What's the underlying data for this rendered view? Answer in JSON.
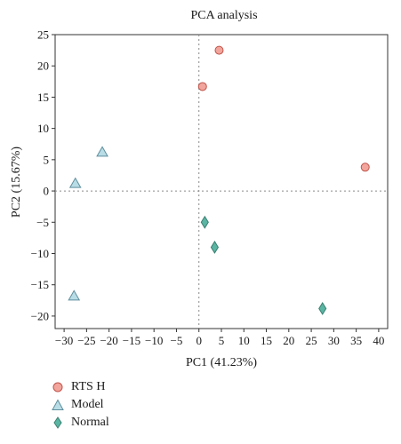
{
  "chart_data": {
    "type": "scatter",
    "title": "PCA analysis",
    "xlabel": "PC1 (41.23%)",
    "ylabel": "PC2 (15.67%)",
    "xlim": [
      -32,
      42
    ],
    "ylim": [
      -22,
      25
    ],
    "xticks": [
      -30,
      -25,
      -20,
      -15,
      -10,
      -5,
      0,
      5,
      10,
      15,
      20,
      25,
      30,
      35,
      40
    ],
    "yticks": [
      -20,
      -15,
      -10,
      -5,
      0,
      5,
      10,
      15,
      20,
      25
    ],
    "reference_lines": {
      "x": 0,
      "y": 0,
      "style": "dotted"
    },
    "legend_position": "bottom-left",
    "series": [
      {
        "name": "RTS H",
        "marker": "circle",
        "color": "#f2a59c",
        "stroke": "#c0544a",
        "points": [
          [
            4.5,
            22.5
          ],
          [
            0.8,
            16.7
          ],
          [
            37,
            3.8
          ]
        ]
      },
      {
        "name": "Model",
        "marker": "triangle",
        "color": "#b9dde6",
        "stroke": "#5f8f9e",
        "points": [
          [
            -21.5,
            6.2
          ],
          [
            -27.5,
            1.2
          ],
          [
            -27.8,
            -16.8
          ]
        ]
      },
      {
        "name": "Normal",
        "marker": "diamond",
        "color": "#5ab5a3",
        "stroke": "#3a7f70",
        "points": [
          [
            1.3,
            -5
          ],
          [
            3.5,
            -9
          ],
          [
            27.5,
            -18.8
          ]
        ]
      }
    ]
  }
}
